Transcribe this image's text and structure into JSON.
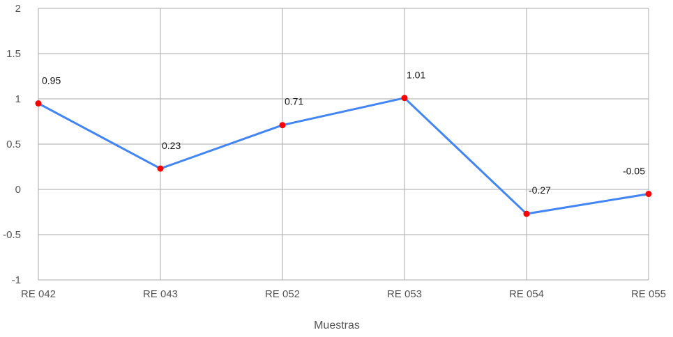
{
  "chart_data": {
    "type": "line",
    "categories": [
      "RE 042",
      "RE 043",
      "RE 052",
      "RE 053",
      "RE 054",
      "RE 055"
    ],
    "series": [
      {
        "values": [
          0.95,
          0.23,
          0.71,
          1.01,
          -0.27,
          -0.05
        ]
      }
    ],
    "data_labels": [
      "0.95",
      "0.23",
      "0.71",
      "1.01",
      "-0.27",
      "-0.05"
    ],
    "y_ticks": [
      -1,
      -0.5,
      0,
      0.5,
      1,
      1.5,
      2
    ],
    "y_tick_labels": [
      "-1",
      "-0.5",
      "0",
      "0.5",
      "1",
      "1.5",
      "2"
    ],
    "ylim": [
      -1,
      2
    ],
    "xlabel": "Muestras",
    "ylabel": "",
    "title": "",
    "grid": true,
    "legend": "none",
    "colors": {
      "line": "#4285f4",
      "marker": "#ff0000",
      "grid": "#aaaaaa",
      "tick_text": "#555555"
    }
  }
}
